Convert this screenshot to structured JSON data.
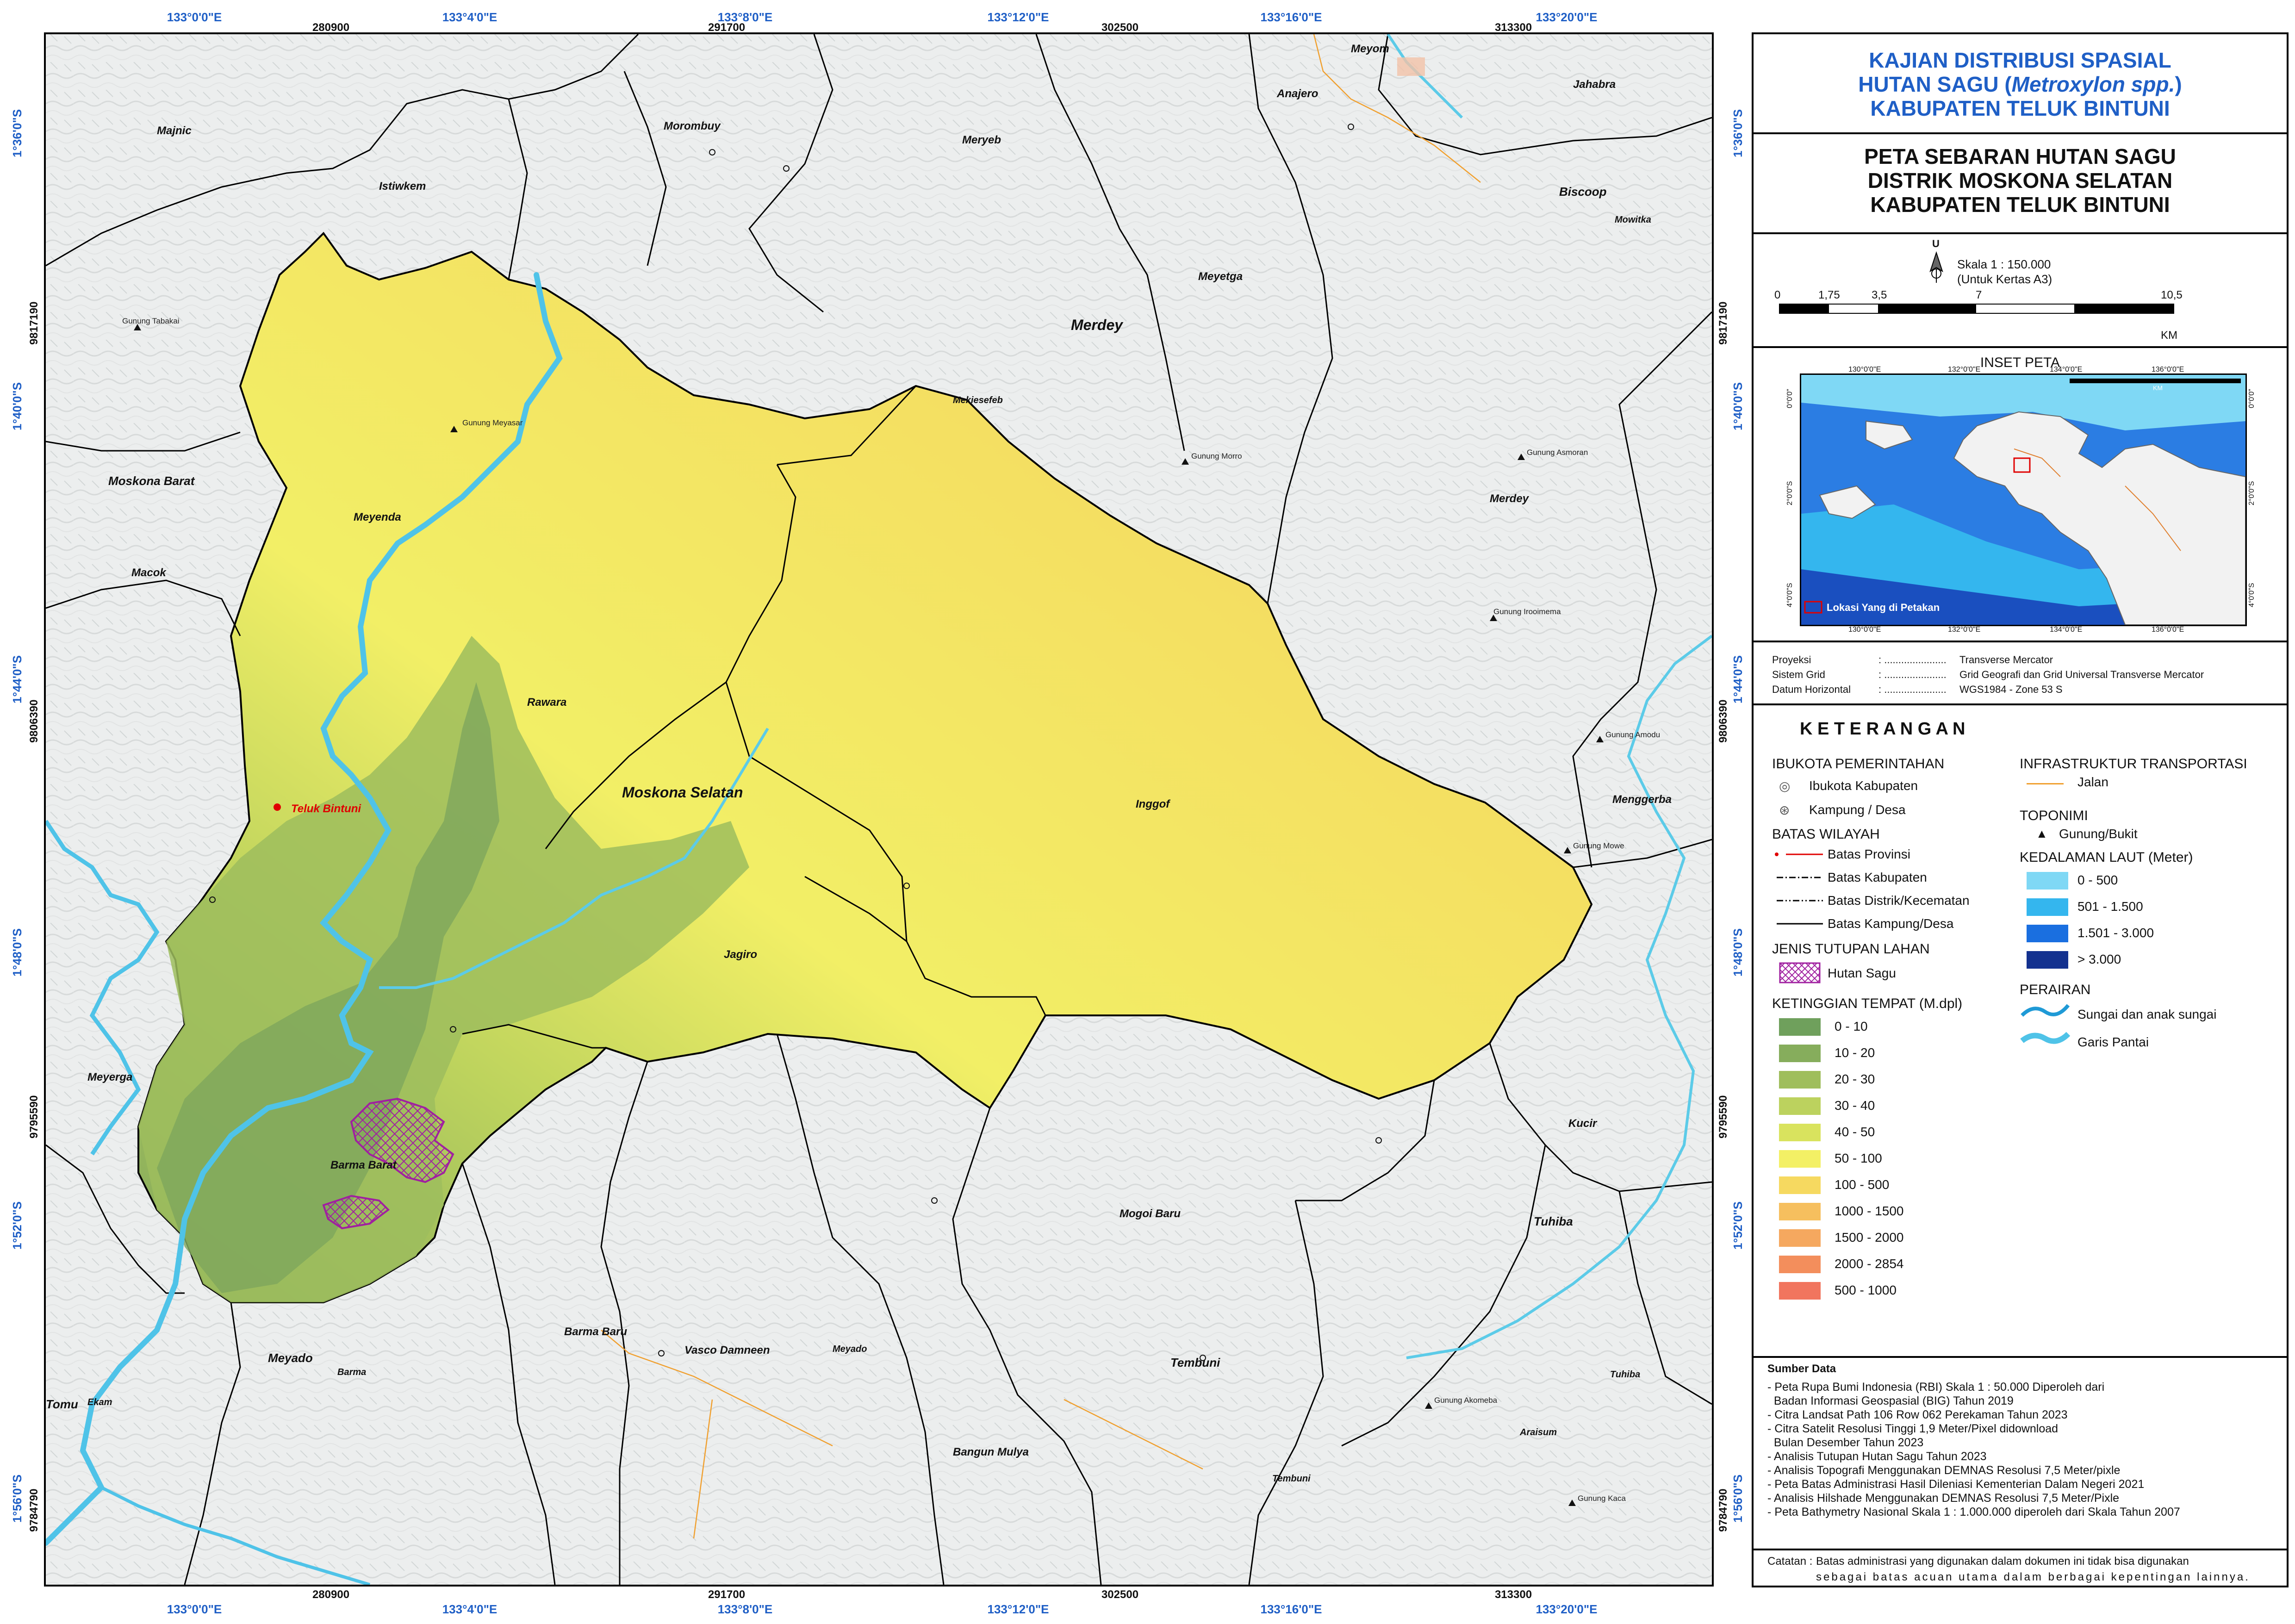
{
  "title": {
    "line1": "KAJIAN DISTRIBUSI SPASIAL",
    "line2a": "HUTAN SAGU (",
    "line2b": "Metroxylon spp.",
    "line2c": ")",
    "line3": "KABUPATEN TELUK BINTUNI"
  },
  "subtitle": {
    "line1": "PETA SEBARAN HUTAN SAGU",
    "line2": "DISTRIK MOSKONA SELATAN",
    "line3": "KABUPATEN TELUK BINTUNI"
  },
  "north_arrow_label": "U",
  "scale": {
    "label": "Skala 1 : 150.000",
    "paper": "(Untuk Kertas A3)",
    "ticks": [
      "0",
      "1,75",
      "3,5",
      "7",
      "10,5"
    ],
    "unit": "KM"
  },
  "inset": {
    "title": "INSET PETA",
    "lon_labels": [
      "130°0'0\"E",
      "132°0'0\"E",
      "134°0'0\"E",
      "136°0'0\"E"
    ],
    "lat_labels_left": [
      "0°0'0\"",
      "2°0'0\"S",
      "4°0'0\"S"
    ],
    "lat_labels_right": [
      "0°0'0\"",
      "2°0'0\"S",
      "4°0'0\"S"
    ],
    "location_label": "Lokasi Yang di Petakan",
    "scale_text": "KM"
  },
  "projection": {
    "rows": [
      {
        "key": "Proyeksi",
        "sep": ": ......................",
        "val": "Transverse Mercator"
      },
      {
        "key": "Sistem Grid",
        "sep": ": ......................",
        "val": "Grid Geografi dan Grid Universal Transverse Mercator"
      },
      {
        "key": "Datum Horizontal",
        "sep": ": ......................",
        "val": "WGS1984 - Zone 53 S"
      }
    ]
  },
  "legend": {
    "title": "K E T E R A N G A N",
    "ibukota_head": "IBUKOTA PEMERINTAHAN",
    "ibukota_items": [
      "Ibukota Kabupaten",
      "Kampung / Desa"
    ],
    "batas_head": "BATAS WILAYAH",
    "batas_items": [
      "Batas Provinsi",
      "Batas Kabupaten",
      "Batas Distrik/Kecematan",
      "Batas Kampung/Desa"
    ],
    "jenis_head": "JENIS TUTUPAN LAHAN",
    "jenis_items": [
      "Hutan Sagu"
    ],
    "ketinggian_head": "KETINGGIAN TEMPAT (M.dpl)",
    "ketinggian_items": [
      {
        "label": "0 - 10",
        "color": "#6fa05c"
      },
      {
        "label": "10 - 20",
        "color": "#86ad5c"
      },
      {
        "label": "20 - 30",
        "color": "#9fbe5c"
      },
      {
        "label": "30 - 40",
        "color": "#bcd25e"
      },
      {
        "label": "40 - 50",
        "color": "#d9e35e"
      },
      {
        "label": "50 - 100",
        "color": "#f3f065"
      },
      {
        "label": "100 - 500",
        "color": "#f6d960"
      },
      {
        "label": "1000 - 1500",
        "color": "#f6bf5e"
      },
      {
        "label": "1500 - 2000",
        "color": "#f5a85f"
      },
      {
        "label": "2000 - 2854",
        "color": "#f38e5c"
      },
      {
        "label": "500 - 1000",
        "color": "#f1755e"
      }
    ],
    "infra_head": "INFRASTRUKTUR TRANSPORTASI",
    "infra_items": [
      "Jalan"
    ],
    "toponimi_head": "TOPONIMI",
    "toponimi_items": [
      "Gunung/Bukit"
    ],
    "kedalaman_head": "KEDALAMAN LAUT (Meter)",
    "kedalaman_items": [
      {
        "label": "0 - 500",
        "color": "#7fd8f5"
      },
      {
        "label": "501 - 1.500",
        "color": "#34b6ee"
      },
      {
        "label": "1.501 - 3.000",
        "color": "#1a6fe0"
      },
      {
        "label": "> 3.000",
        "color": "#13318f"
      }
    ],
    "perairan_head": "PERAIRAN",
    "perairan_items": [
      "Sungai dan anak sungai",
      "Garis Pantai"
    ]
  },
  "sources": {
    "head": "Sumber Data",
    "items": [
      "- Peta Rupa Bumi Indonesia (RBI) Skala 1 : 50.000 Diperoleh dari",
      "  Badan Informasi Geospasial (BIG) Tahun 2019",
      "- Citra Landsat Path 106 Row 062 Perekaman Tahun 2023",
      "- Citra Satelit Resolusi Tinggi 1,9 Meter/Pixel didownload",
      "  Bulan Desember Tahun 2023",
      "- Analisis Tutupan Hutan Sagu Tahun 2023",
      "- Analisis Topografi Menggunakan DEMNAS Resolusi 7,5 Meter/pixle",
      "- Peta Batas Administrasi Hasil Dileniasi Kementerian Dalam Negeri 2021",
      "- Analisis Hilshade Menggunakan DEMNAS Resolusi 7,5 Meter/Pixle",
      "- Peta Bathymetry Nasional Skala 1 : 1.000.000 diperoleh dari Skala Tahun 2007"
    ]
  },
  "catatan": {
    "head": "Catatan :",
    "line1": "Batas administrasi yang digunakan dalam dokumen ini tidak bisa digunakan",
    "line2": "sebagai batas acuan utama dalam berbagai kepentingan lainnya."
  },
  "grid": {
    "lon_top": [
      "133°0'0\"E",
      "133°4'0\"E",
      "133°8'0\"E",
      "133°12'0\"E",
      "133°16'0\"E",
      "133°20'0\"E"
    ],
    "utm_top": [
      "280900",
      "291700",
      "302500",
      "313300"
    ],
    "lat_left": [
      "1°36'0\"S",
      "1°40'0\"S",
      "1°44'0\"S",
      "1°48'0\"S",
      "1°52'0\"S",
      "1°56'0\"S"
    ],
    "utm_left": [
      "9817190",
      "9806390",
      "9795590",
      "9784790"
    ]
  },
  "places": {
    "Majnic": "Majnic",
    "Istiwkem": "Istiwkem",
    "Morombuy": "Morombuy",
    "Meryeb": "Meryeb",
    "Meyom": "Meyom",
    "Anajero": "Anajero",
    "Jahabra": "Jahabra",
    "Biscoop": "Biscoop",
    "Mowitka": "Mowitka",
    "Meyetga": "Meyetga",
    "Merdey_big": "Merdey",
    "Mekiesefeb": "Mekiesefeb",
    "Moskona_Barat": "Moskona Barat",
    "Meyenda": "Meyenda",
    "Macok": "Macok",
    "Rawara": "Rawara",
    "Merdey": "Merdey",
    "Teluk_Bintuni": "Teluk Bintuni",
    "Moskona_Selatan": "Moskona Selatan",
    "Inggof": "Inggof",
    "Menggerba": "Menggerba",
    "Jagiro": "Jagiro",
    "Meyerga": "Meyerga",
    "Barma_Barat": "Barma Barat",
    "Kucir": "Kucir",
    "Mogoi_Baru": "Mogoi Baru",
    "Tuhiba": "Tuhiba",
    "Meyado": "Meyado",
    "Barma": "Barma",
    "Barma_Baru": "Barma Baru",
    "Vasco_Damneen": "Vasco Damneen",
    "Meyado2": "Meyado",
    "Tembuni_big": "Tembuni",
    "Tuhiba2": "Tuhiba",
    "Tomu": "Tomu",
    "Ekam": "Ekam",
    "Bangun_Mulya": "Bangun Mulya",
    "Araisum": "Araisum",
    "Tembuni": "Tembuni",
    "G_Tabakai": "Gunung Tabakai",
    "G_Meyasar": "Gunung Meyasar",
    "G_Morro": "Gunung Morro",
    "G_Asmoran": "Gunung Asmoran",
    "G_Irooimema": "Gunung Irooimema",
    "G_Amodu": "Gunung Amodu",
    "G_Mowe": "Gunung Mowe",
    "G_Akomeba": "Gunung Akomeba",
    "G_Kaca": "Gunung Kaca"
  },
  "colors": {
    "title_blue": "#1f5fc6",
    "river": "#4fc3e8",
    "boundary": "#111111",
    "sagu": "#a020a0",
    "road": "#f0a030",
    "province": "#e00000"
  }
}
